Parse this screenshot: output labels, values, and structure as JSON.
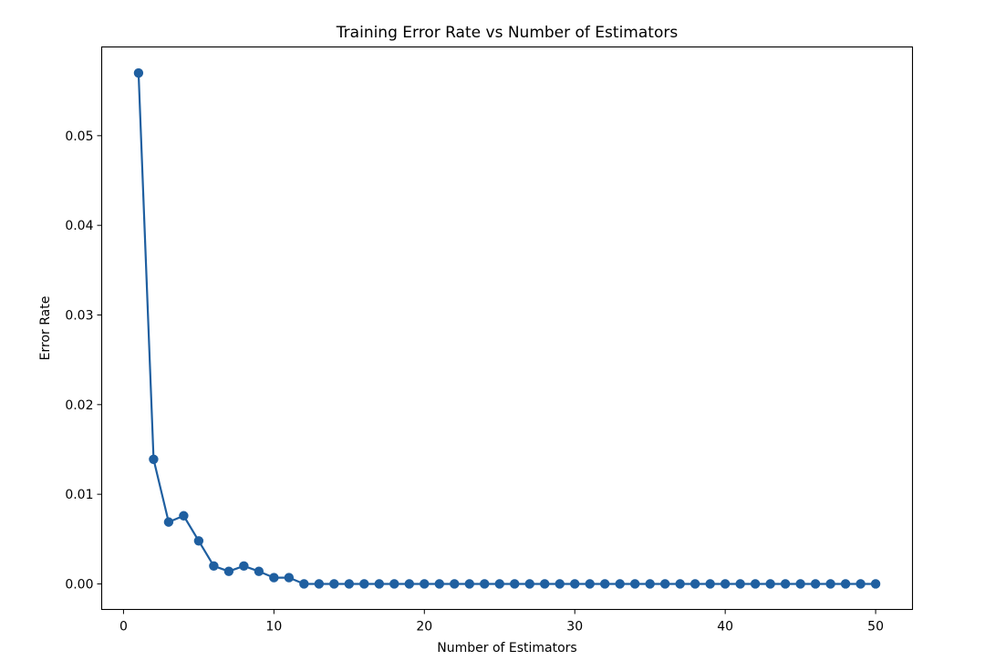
{
  "chart_data": {
    "type": "line",
    "title": "Training Error Rate vs Number of Estimators",
    "xlabel": "Number of Estimators",
    "ylabel": "Error Rate",
    "xlim": [
      -1.45,
      52.45
    ],
    "ylim": [
      -0.00285,
      0.0599
    ],
    "xticks": [
      0,
      10,
      20,
      30,
      40,
      50
    ],
    "xtick_labels": [
      "0",
      "10",
      "20",
      "30",
      "40",
      "50"
    ],
    "yticks": [
      0.0,
      0.01,
      0.02,
      0.03,
      0.04,
      0.05
    ],
    "ytick_labels": [
      "0.00",
      "0.01",
      "0.02",
      "0.03",
      "0.04",
      "0.05"
    ],
    "grid": false,
    "marker": "circle",
    "color": "#1f5fa0",
    "x": [
      1,
      2,
      3,
      4,
      5,
      6,
      7,
      8,
      9,
      10,
      11,
      12,
      13,
      14,
      15,
      16,
      17,
      18,
      19,
      20,
      21,
      22,
      23,
      24,
      25,
      26,
      27,
      28,
      29,
      30,
      31,
      32,
      33,
      34,
      35,
      36,
      37,
      38,
      39,
      40,
      41,
      42,
      43,
      44,
      45,
      46,
      47,
      48,
      49,
      50
    ],
    "y": [
      0.057,
      0.0139,
      0.0069,
      0.0076,
      0.0048,
      0.002,
      0.0014,
      0.002,
      0.0014,
      0.0007,
      0.0007,
      0,
      0,
      0,
      0,
      0,
      0,
      0,
      0,
      0,
      0,
      0,
      0,
      0,
      0,
      0,
      0,
      0,
      0,
      0,
      0,
      0,
      0,
      0,
      0,
      0,
      0,
      0,
      0,
      0,
      0,
      0,
      0,
      0,
      0,
      0,
      0,
      0,
      0,
      0
    ]
  }
}
